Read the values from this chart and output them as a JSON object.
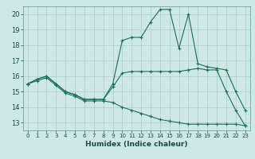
{
  "xlabel": "Humidex (Indice chaleur)",
  "xlim": [
    -0.5,
    23.5
  ],
  "ylim": [
    12.5,
    20.5
  ],
  "yticks": [
    13,
    14,
    15,
    16,
    17,
    18,
    19,
    20
  ],
  "xticks": [
    0,
    1,
    2,
    3,
    4,
    5,
    6,
    7,
    8,
    9,
    10,
    11,
    12,
    13,
    14,
    15,
    16,
    17,
    18,
    19,
    20,
    21,
    22,
    23
  ],
  "background_color": "#cde8e5",
  "grid_color": "#a8ccc9",
  "line_color": "#1a6e62",
  "series": [
    {
      "x": [
        0,
        1,
        2,
        3,
        4,
        5,
        6,
        7,
        8,
        9,
        10,
        11,
        12,
        13,
        14,
        15,
        16,
        17,
        18,
        19,
        20,
        21,
        22,
        23
      ],
      "y": [
        15.5,
        15.8,
        16.0,
        15.5,
        15.0,
        14.8,
        14.5,
        14.5,
        14.5,
        15.5,
        18.3,
        18.5,
        18.5,
        19.5,
        20.3,
        20.3,
        17.8,
        20.0,
        16.8,
        16.6,
        16.5,
        16.4,
        15.0,
        13.8
      ]
    },
    {
      "x": [
        0,
        1,
        2,
        3,
        4,
        5,
        6,
        7,
        8,
        9,
        10,
        11,
        12,
        13,
        14,
        15,
        16,
        17,
        18,
        19,
        20,
        21,
        22,
        23
      ],
      "y": [
        15.5,
        15.8,
        16.0,
        15.5,
        15.0,
        14.8,
        14.5,
        14.5,
        14.5,
        15.3,
        16.2,
        16.3,
        16.3,
        16.3,
        16.3,
        16.3,
        16.3,
        16.4,
        16.5,
        16.4,
        16.4,
        15.0,
        13.8,
        12.8
      ]
    },
    {
      "x": [
        0,
        1,
        2,
        3,
        4,
        5,
        6,
        7,
        8,
        9,
        10,
        11,
        12,
        13,
        14,
        15,
        16,
        17,
        18,
        19,
        20,
        21,
        22,
        23
      ],
      "y": [
        15.5,
        15.7,
        15.9,
        15.4,
        14.9,
        14.7,
        14.4,
        14.4,
        14.4,
        14.3,
        14.0,
        13.8,
        13.6,
        13.4,
        13.2,
        13.1,
        13.0,
        12.9,
        12.9,
        12.9,
        12.9,
        12.9,
        12.9,
        12.8
      ]
    }
  ]
}
